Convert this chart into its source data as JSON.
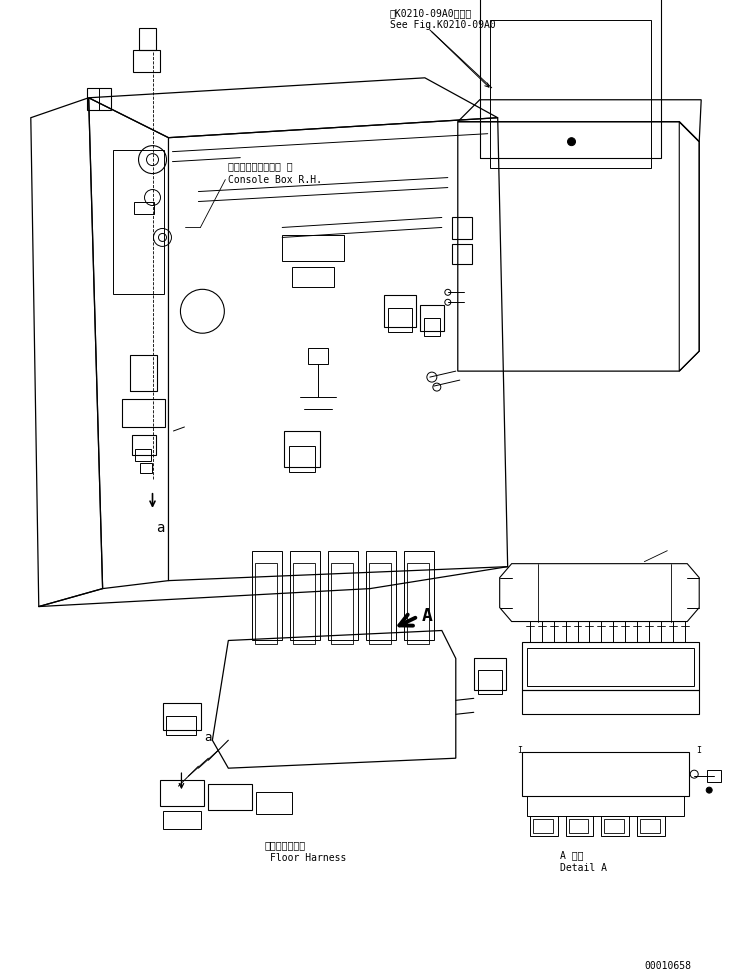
{
  "bg_color": "#ffffff",
  "line_color": "#000000",
  "fig_width": 7.34,
  "fig_height": 9.73,
  "dpi": 100,
  "label_console_box_jp": "コンソールボックス 右",
  "label_console_box_en": "Console Box R.H.",
  "label_floor_harness_jp": "フロアハーネス",
  "label_floor_harness_en": "Floor Harness",
  "label_detail_jp": "A 詳細",
  "label_detail_en": "Detail A",
  "label_ref_jp": "第K0210-09A0図参照",
  "label_ref_en": "See Fig.K0210-09A0",
  "label_A": "A",
  "label_a": "a",
  "part_number": "00010658",
  "font_size_label": 7,
  "font_size_part": 7
}
